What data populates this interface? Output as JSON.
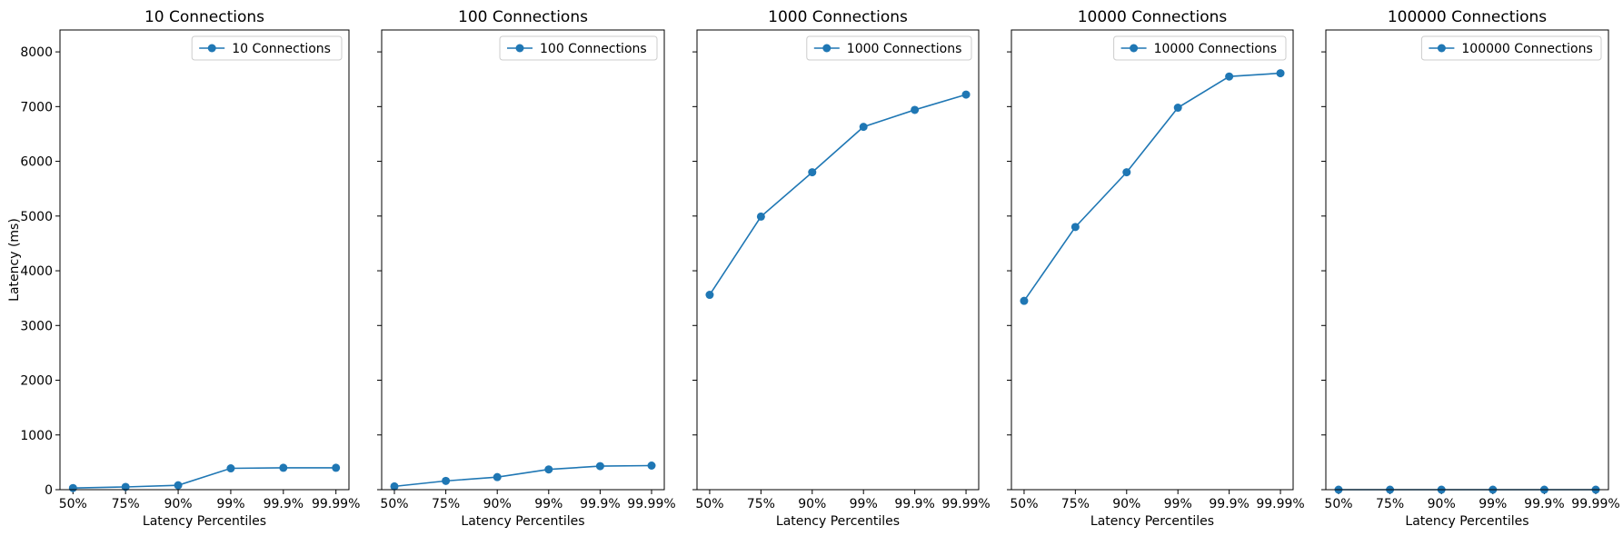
{
  "chart_data": [
    {
      "type": "line",
      "title": "10 Connections",
      "xlabel": "Latency Percentiles",
      "ylabel": "Latency (ms)",
      "categories": [
        "50%",
        "75%",
        "90%",
        "99%",
        "99.9%",
        "99.99%"
      ],
      "ylim": [
        0,
        8400
      ],
      "yticks": [
        0,
        1000,
        2000,
        3000,
        4000,
        5000,
        6000,
        7000,
        8000
      ],
      "legend": "top-right",
      "grid": false,
      "series": [
        {
          "name": "10 Connections",
          "color": "#1f77b4",
          "marker": "circle",
          "values": [
            30,
            50,
            80,
            390,
            400,
            400
          ]
        }
      ]
    },
    {
      "type": "line",
      "title": "100 Connections",
      "xlabel": "Latency Percentiles",
      "ylabel": "",
      "categories": [
        "50%",
        "75%",
        "90%",
        "99%",
        "99.9%",
        "99.99%"
      ],
      "ylim": [
        0,
        8400
      ],
      "yticks": [
        0,
        1000,
        2000,
        3000,
        4000,
        5000,
        6000,
        7000,
        8000
      ],
      "legend": "top-right",
      "grid": false,
      "series": [
        {
          "name": "100 Connections",
          "color": "#1f77b4",
          "marker": "circle",
          "values": [
            60,
            160,
            230,
            370,
            430,
            440
          ]
        }
      ]
    },
    {
      "type": "line",
      "title": "1000 Connections",
      "xlabel": "Latency Percentiles",
      "ylabel": "",
      "categories": [
        "50%",
        "75%",
        "90%",
        "99%",
        "99.9%",
        "99.99%"
      ],
      "ylim": [
        0,
        8400
      ],
      "yticks": [
        0,
        1000,
        2000,
        3000,
        4000,
        5000,
        6000,
        7000,
        8000
      ],
      "legend": "top-right",
      "grid": false,
      "series": [
        {
          "name": "1000 Connections",
          "color": "#1f77b4",
          "marker": "circle",
          "values": [
            3560,
            4990,
            5800,
            6630,
            6940,
            7220
          ]
        }
      ]
    },
    {
      "type": "line",
      "title": "10000 Connections",
      "xlabel": "Latency Percentiles",
      "ylabel": "",
      "categories": [
        "50%",
        "75%",
        "90%",
        "99%",
        "99.9%",
        "99.99%"
      ],
      "ylim": [
        0,
        8400
      ],
      "yticks": [
        0,
        1000,
        2000,
        3000,
        4000,
        5000,
        6000,
        7000,
        8000
      ],
      "legend": "top-right",
      "grid": false,
      "series": [
        {
          "name": "10000 Connections",
          "color": "#1f77b4",
          "marker": "circle",
          "values": [
            3450,
            4800,
            5800,
            6980,
            7550,
            7610
          ]
        }
      ]
    },
    {
      "type": "line",
      "title": "100000 Connections",
      "xlabel": "Latency Percentiles",
      "ylabel": "",
      "categories": [
        "50%",
        "75%",
        "90%",
        "99%",
        "99.9%",
        "99.99%"
      ],
      "ylim": [
        0,
        8400
      ],
      "yticks": [
        0,
        1000,
        2000,
        3000,
        4000,
        5000,
        6000,
        7000,
        8000
      ],
      "legend": "top-right",
      "grid": false,
      "series": [
        {
          "name": "100000 Connections",
          "color": "#1f77b4",
          "marker": "circle",
          "values": [
            0,
            0,
            0,
            0,
            0,
            0
          ]
        }
      ]
    }
  ]
}
